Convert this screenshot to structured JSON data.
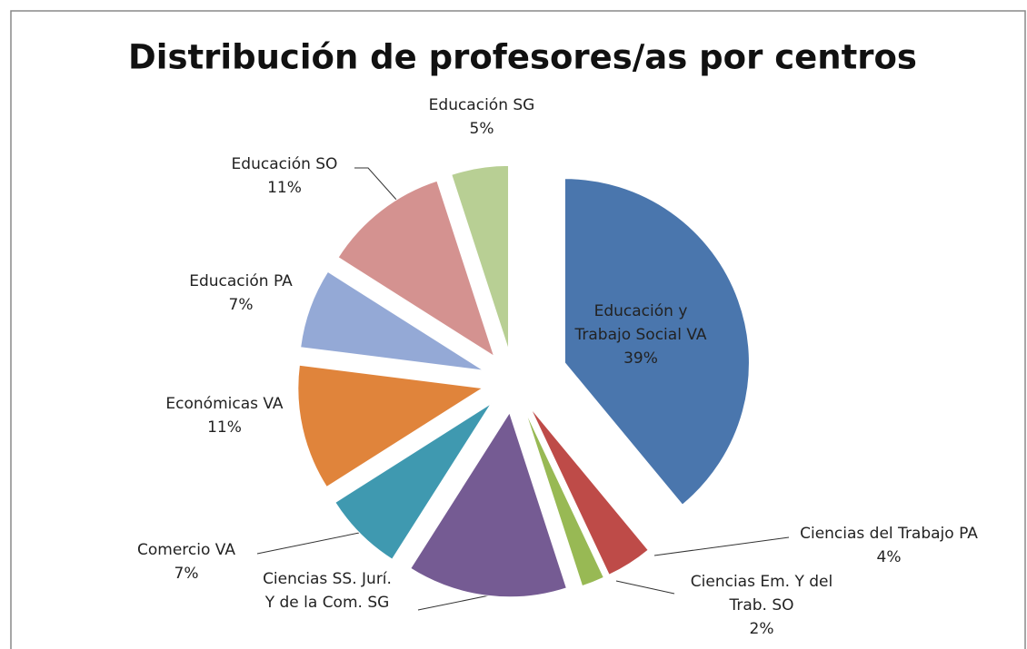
{
  "chart_data": {
    "type": "pie",
    "title": "Distribución de profesores/as por centros",
    "categories": [
      "Educación y Trabajo Social VA",
      "Ciencias del Trabajo PA",
      "Ciencias Em. Y del Trab. SO",
      "Ciencias SS. Jurí. Y de la Com. SG",
      "Comercio VA",
      "Económicas VA",
      "Educación PA",
      "Educación SO",
      "Educación SG"
    ],
    "values": [
      39,
      4,
      2,
      14,
      7,
      11,
      7,
      11,
      5
    ],
    "value_labels": [
      "39%",
      "4%",
      "2%",
      null,
      "7%",
      "11%",
      "7%",
      "11%",
      "5%"
    ],
    "colors": [
      "#4a76ad",
      "#be4b48",
      "#98b954",
      "#755b93",
      "#3f99b0",
      "#e0843b",
      "#94a9d6",
      "#d49290",
      "#b8cf94"
    ]
  }
}
